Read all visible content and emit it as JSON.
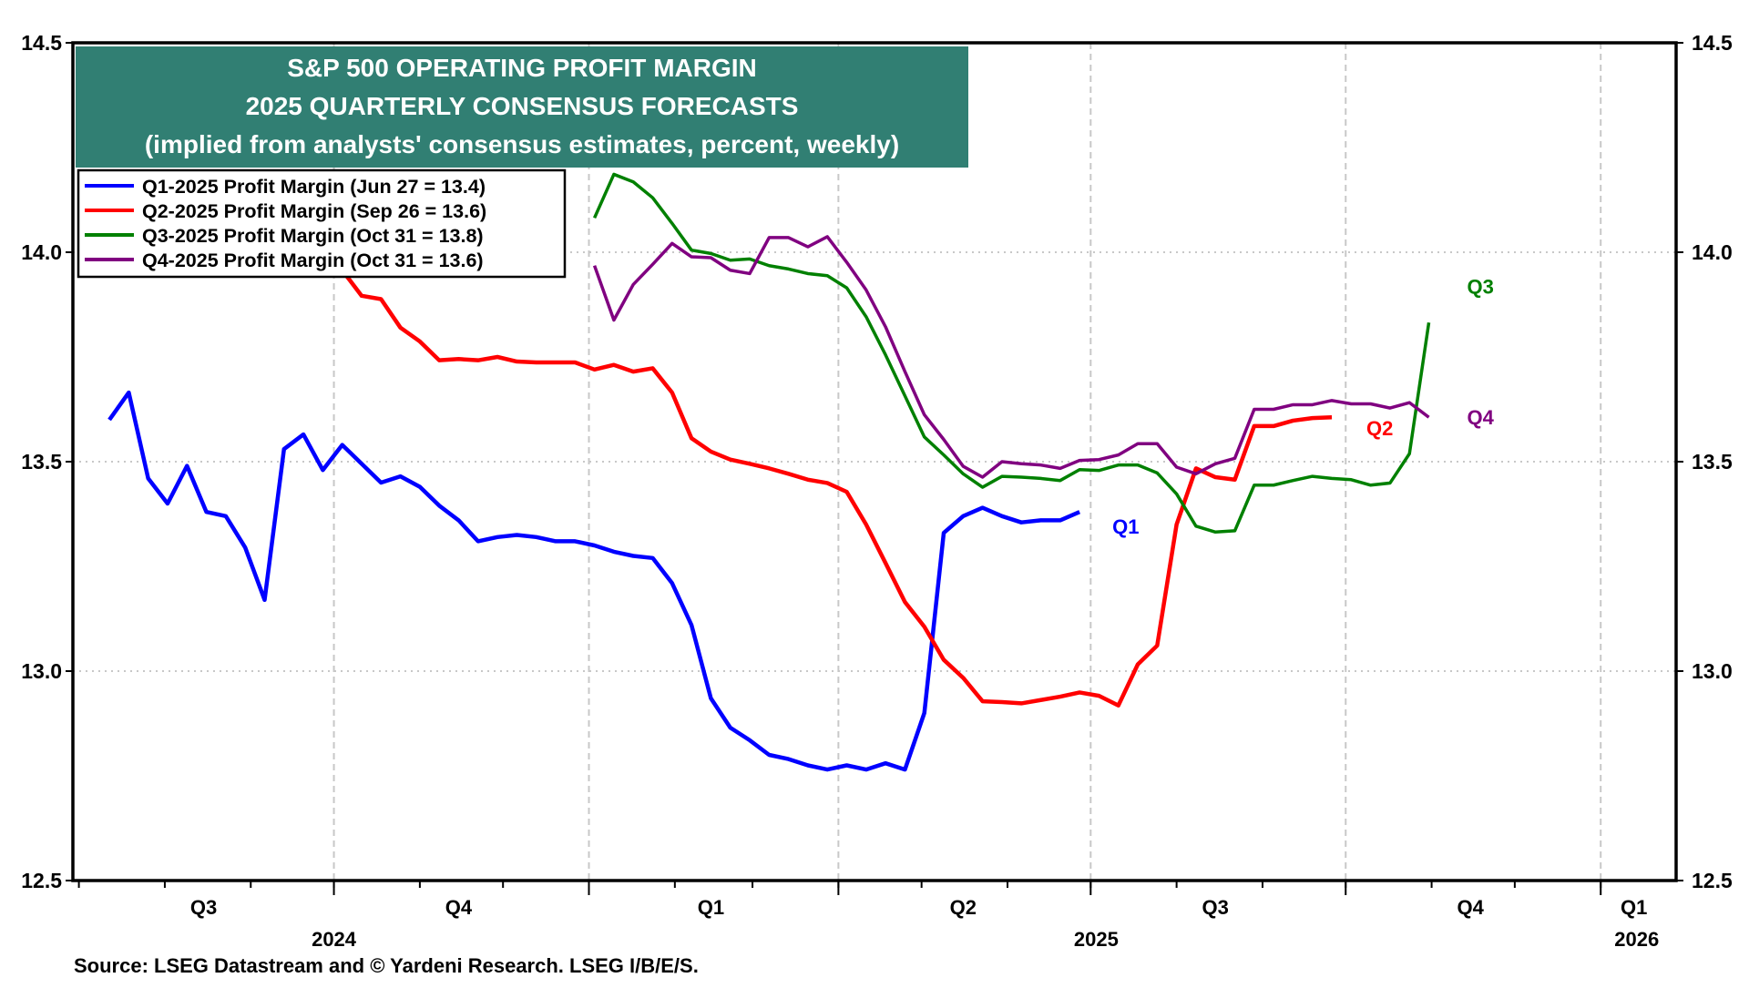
{
  "chart_data": {
    "type": "line",
    "title": "S&P 500 OPERATING PROFIT MARGIN",
    "subtitle": "2025 QUARTERLY CONSENSUS FORECASTS",
    "subtitle2": "(implied from analysts' consensus estimates, percent, weekly)",
    "ylim": [
      12.5,
      14.5
    ],
    "yticks": [
      "14.5",
      "14.0",
      "13.5",
      "13.0",
      "12.5"
    ],
    "xlim": [
      "2024-07-01",
      "2026-02-10"
    ],
    "quarter_labels": [
      {
        "label": "Q3",
        "date": "2024-08-15"
      },
      {
        "label": "Q4",
        "date": "2024-11-15"
      },
      {
        "label": "Q1",
        "date": "2025-02-14"
      },
      {
        "label": "Q2",
        "date": "2025-05-16"
      },
      {
        "label": "Q3",
        "date": "2025-08-15"
      },
      {
        "label": "Q4",
        "date": "2025-11-15"
      },
      {
        "label": "Q1",
        "date": "2026-01-13"
      }
    ],
    "year_labels": [
      {
        "label": "2024",
        "date": "2024-10-01"
      },
      {
        "label": "2025",
        "date": "2025-07-03"
      },
      {
        "label": "2026",
        "date": "2026-01-14"
      }
    ],
    "grid": true,
    "legend_position": "top-left",
    "source": "Source: LSEG Datastream and © Yardeni Research. LSEG I/B/E/S.",
    "colors": {
      "title_bg": "#317f73"
    },
    "series": [
      {
        "name": "Q1-2025 Profit Margin (Jun 27 = 13.4)",
        "end_label": "Q1",
        "color": "#0000ff",
        "dates": [
          "2024-07-12",
          "2024-07-19",
          "2024-07-26",
          "2024-08-02",
          "2024-08-09",
          "2024-08-16",
          "2024-08-23",
          "2024-08-30",
          "2024-09-06",
          "2024-09-13",
          "2024-09-20",
          "2024-09-27",
          "2024-10-04",
          "2024-10-11",
          "2024-10-18",
          "2024-10-25",
          "2024-11-01",
          "2024-11-08",
          "2024-11-15",
          "2024-11-22",
          "2024-11-29",
          "2024-12-06",
          "2024-12-13",
          "2024-12-20",
          "2024-12-27",
          "2025-01-03",
          "2025-01-10",
          "2025-01-17",
          "2025-01-24",
          "2025-01-31",
          "2025-02-07",
          "2025-02-14",
          "2025-02-21",
          "2025-02-28",
          "2025-03-07",
          "2025-03-14",
          "2025-03-21",
          "2025-03-28",
          "2025-04-04",
          "2025-04-11",
          "2025-04-18",
          "2025-04-25",
          "2025-05-02",
          "2025-05-09",
          "2025-05-16",
          "2025-05-23",
          "2025-05-30",
          "2025-06-06",
          "2025-06-13",
          "2025-06-20",
          "2025-06-27"
        ],
        "values": [
          13.6,
          13.665,
          13.46,
          13.4,
          13.49,
          13.38,
          13.37,
          13.295,
          13.17,
          13.53,
          13.565,
          13.48,
          13.54,
          13.495,
          13.45,
          13.465,
          13.44,
          13.395,
          13.36,
          13.31,
          13.32,
          13.325,
          13.32,
          13.31,
          13.31,
          13.3,
          13.285,
          13.275,
          13.27,
          13.21,
          13.11,
          12.935,
          12.865,
          12.835,
          12.8,
          12.79,
          12.775,
          12.765,
          12.775,
          12.765,
          12.78,
          12.765,
          12.9,
          13.33,
          13.37,
          13.39,
          13.37,
          13.355,
          13.36,
          13.36,
          13.38
        ]
      },
      {
        "name": "Q2-2025 Profit Margin (Sep 26 = 13.6)",
        "end_label": "Q2",
        "color": "#ff0000",
        "dates": [
          "2024-10-04",
          "2024-10-11",
          "2024-10-18",
          "2024-10-25",
          "2024-11-01",
          "2024-11-08",
          "2024-11-15",
          "2024-11-22",
          "2024-11-29",
          "2024-12-06",
          "2024-12-13",
          "2024-12-20",
          "2024-12-27",
          "2025-01-03",
          "2025-01-10",
          "2025-01-17",
          "2025-01-24",
          "2025-01-31",
          "2025-02-07",
          "2025-02-14",
          "2025-02-21",
          "2025-02-28",
          "2025-03-07",
          "2025-03-14",
          "2025-03-21",
          "2025-03-28",
          "2025-04-04",
          "2025-04-11",
          "2025-04-18",
          "2025-04-25",
          "2025-05-02",
          "2025-05-09",
          "2025-05-16",
          "2025-05-23",
          "2025-05-30",
          "2025-06-06",
          "2025-06-13",
          "2025-06-20",
          "2025-06-27",
          "2025-07-04",
          "2025-07-11",
          "2025-07-18",
          "2025-07-25",
          "2025-08-01",
          "2025-08-08",
          "2025-08-15",
          "2025-08-22",
          "2025-08-29",
          "2025-09-05",
          "2025-09-12",
          "2025-09-19",
          "2025-09-26"
        ],
        "values": [
          13.957,
          13.896,
          13.888,
          13.82,
          13.787,
          13.742,
          13.745,
          13.742,
          13.75,
          13.739,
          13.737,
          13.737,
          13.737,
          13.72,
          13.731,
          13.715,
          13.723,
          13.665,
          13.556,
          13.524,
          13.505,
          13.495,
          13.484,
          13.471,
          13.457,
          13.449,
          13.428,
          13.35,
          13.258,
          13.165,
          13.106,
          13.027,
          12.984,
          12.928,
          12.926,
          12.923,
          12.931,
          12.939,
          12.949,
          12.941,
          12.918,
          13.016,
          13.061,
          13.35,
          13.484,
          13.463,
          13.457,
          13.585,
          13.585,
          13.598,
          13.604,
          13.606
        ]
      },
      {
        "name": "Q3-2025 Profit Margin (Oct 31 = 13.8)",
        "end_label": "Q3",
        "color": "#008000",
        "dates": [
          "2025-01-03",
          "2025-01-10",
          "2025-01-17",
          "2025-01-24",
          "2025-01-31",
          "2025-02-07",
          "2025-02-14",
          "2025-02-21",
          "2025-02-28",
          "2025-03-07",
          "2025-03-14",
          "2025-03-21",
          "2025-03-28",
          "2025-04-04",
          "2025-04-11",
          "2025-04-18",
          "2025-04-25",
          "2025-05-02",
          "2025-05-09",
          "2025-05-16",
          "2025-05-23",
          "2025-05-30",
          "2025-06-06",
          "2025-06-13",
          "2025-06-20",
          "2025-06-27",
          "2025-07-04",
          "2025-07-11",
          "2025-07-18",
          "2025-07-25",
          "2025-08-01",
          "2025-08-08",
          "2025-08-15",
          "2025-08-22",
          "2025-08-29",
          "2025-09-05",
          "2025-09-12",
          "2025-09-19",
          "2025-09-26",
          "2025-10-03",
          "2025-10-10",
          "2025-10-17",
          "2025-10-24",
          "2025-10-31"
        ],
        "values": [
          14.082,
          14.186,
          14.168,
          14.13,
          14.069,
          14.005,
          13.997,
          13.981,
          13.984,
          13.968,
          13.96,
          13.949,
          13.944,
          13.915,
          13.846,
          13.755,
          13.657,
          13.559,
          13.516,
          13.471,
          13.439,
          13.465,
          13.463,
          13.46,
          13.455,
          13.481,
          13.479,
          13.492,
          13.492,
          13.473,
          13.423,
          13.346,
          13.332,
          13.335,
          13.444,
          13.444,
          13.455,
          13.465,
          13.46,
          13.457,
          13.444,
          13.449,
          13.519,
          13.832
        ]
      },
      {
        "name": "Q4-2025 Profit Margin (Oct 31 = 13.6)",
        "end_label": "Q4",
        "color": "#800080",
        "dates": [
          "2025-01-03",
          "2025-01-10",
          "2025-01-17",
          "2025-01-24",
          "2025-01-31",
          "2025-02-07",
          "2025-02-14",
          "2025-02-21",
          "2025-02-28",
          "2025-03-07",
          "2025-03-14",
          "2025-03-21",
          "2025-03-28",
          "2025-04-04",
          "2025-04-11",
          "2025-04-18",
          "2025-04-25",
          "2025-05-02",
          "2025-05-09",
          "2025-05-16",
          "2025-05-23",
          "2025-05-30",
          "2025-06-06",
          "2025-06-13",
          "2025-06-20",
          "2025-06-27",
          "2025-07-04",
          "2025-07-11",
          "2025-07-18",
          "2025-07-25",
          "2025-08-01",
          "2025-08-08",
          "2025-08-15",
          "2025-08-22",
          "2025-08-29",
          "2025-09-05",
          "2025-09-12",
          "2025-09-19",
          "2025-09-26",
          "2025-10-03",
          "2025-10-10",
          "2025-10-17",
          "2025-10-24",
          "2025-10-31"
        ],
        "values": [
          13.968,
          13.838,
          13.923,
          13.971,
          14.021,
          13.989,
          13.987,
          13.957,
          13.949,
          14.035,
          14.035,
          14.013,
          14.037,
          13.976,
          13.91,
          13.822,
          13.715,
          13.612,
          13.553,
          13.489,
          13.463,
          13.5,
          13.495,
          13.492,
          13.484,
          13.503,
          13.505,
          13.516,
          13.543,
          13.543,
          13.487,
          13.471,
          13.495,
          13.508,
          13.625,
          13.625,
          13.636,
          13.636,
          13.646,
          13.638,
          13.638,
          13.628,
          13.641,
          13.606
        ]
      }
    ]
  }
}
